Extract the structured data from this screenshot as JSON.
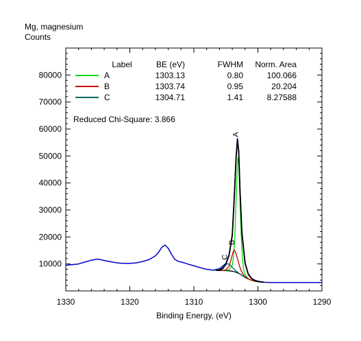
{
  "chart_data": {
    "type": "line",
    "title": "Mg, magnesium",
    "ylabel": "Counts",
    "xlabel": "Binding Energy, (eV)",
    "xlim": [
      1330,
      1290
    ],
    "ylim": [
      0,
      90000
    ],
    "x_ticks": [
      1330,
      1320,
      1310,
      1300,
      1290
    ],
    "y_ticks": [
      10000,
      20000,
      30000,
      40000,
      50000,
      60000,
      70000,
      80000
    ],
    "grid": false,
    "legend": {
      "placement": "top-left",
      "headers": {
        "label": "Label",
        "be": "BE (eV)",
        "fwhm": "FWHM",
        "area": "Norm. Area"
      },
      "entries": [
        {
          "label": "A",
          "be": "1303.13",
          "fwhm": "0.80",
          "area": "100.066",
          "color": "#00dd00"
        },
        {
          "label": "B",
          "be": "1303.74",
          "fwhm": "0.95",
          "area": "20.204",
          "color": "#cc0000"
        },
        {
          "label": "C",
          "be": "1304.71",
          "fwhm": "1.41",
          "area": "8.27588",
          "color": "#006666"
        }
      ]
    },
    "annotation": "Reduced Chi-Square: 3.866",
    "series": [
      {
        "role": "data",
        "color": "#0000cc",
        "x": [
          1330,
          1328,
          1327,
          1326,
          1325,
          1324,
          1323,
          1322,
          1321,
          1320,
          1319,
          1318,
          1317,
          1316,
          1315.5,
          1315,
          1314.5,
          1314,
          1313.5,
          1313,
          1312.5,
          1312,
          1311.5,
          1311,
          1310,
          1309,
          1308,
          1307,
          1306,
          1305,
          1304.5,
          1304,
          1303.7,
          1303.4,
          1303.2,
          1303,
          1302.8,
          1302.5,
          1302,
          1301.5,
          1301,
          1300.5,
          1300,
          1299.5,
          1299,
          1298,
          1296,
          1294,
          1292,
          1290
        ],
        "y": [
          9500,
          10000,
          10700,
          11400,
          11800,
          11300,
          10800,
          10400,
          10200,
          10200,
          10400,
          10900,
          11600,
          13000,
          14400,
          16200,
          17000,
          15800,
          13600,
          11800,
          11000,
          10700,
          10400,
          10000,
          9300,
          8600,
          8000,
          7700,
          8200,
          10200,
          13500,
          21000,
          35000,
          50000,
          56500,
          52000,
          38000,
          22000,
          10500,
          6300,
          4700,
          4000,
          3600,
          3400,
          3200,
          3100,
          3100,
          3100,
          3100,
          3100
        ]
      },
      {
        "role": "envelope",
        "color": "#000000",
        "x": [
          1306.5,
          1306,
          1305.5,
          1305,
          1304.5,
          1304,
          1303.7,
          1303.4,
          1303.2,
          1303,
          1302.8,
          1302.5,
          1302,
          1301.5,
          1301,
          1300.5,
          1300,
          1299.5,
          1299
        ],
        "y": [
          7600,
          7700,
          8200,
          10000,
          13200,
          20500,
          34000,
          49500,
          56000,
          51500,
          37500,
          21500,
          10200,
          6100,
          4600,
          3900,
          3500,
          3300,
          3200
        ]
      },
      {
        "role": "background",
        "color": "#000000",
        "x": [
          1306.5,
          1305.5,
          1304.5,
          1304,
          1303.5,
          1303,
          1302.5,
          1302,
          1301.5,
          1301,
          1300.5,
          1300,
          1299.5,
          1299
        ],
        "y": [
          7600,
          7550,
          7450,
          7300,
          7000,
          6500,
          5800,
          5000,
          4400,
          3900,
          3600,
          3400,
          3300,
          3200
        ]
      },
      {
        "name": "A",
        "color": "#00dd00",
        "x": [
          1305.5,
          1304.5,
          1304,
          1303.8,
          1303.6,
          1303.4,
          1303.2,
          1303.1,
          1303,
          1302.8,
          1302.6,
          1302.4,
          1302.2,
          1302,
          1301.5,
          1301,
          1300.5
        ],
        "y": [
          7500,
          7800,
          9500,
          13000,
          20000,
          34000,
          47000,
          49500,
          47000,
          34000,
          20000,
          11500,
          7600,
          6000,
          4500,
          3900,
          3600
        ]
      },
      {
        "name": "B",
        "color": "#cc0000",
        "x": [
          1306,
          1305.5,
          1305,
          1304.5,
          1304.2,
          1303.9,
          1303.7,
          1303.5,
          1303.2,
          1302.9,
          1302.6,
          1302.3,
          1302,
          1301.5,
          1301,
          1300.5
        ],
        "y": [
          7500,
          7550,
          7800,
          9200,
          11500,
          14200,
          15200,
          14400,
          12000,
          9400,
          7400,
          6100,
          5300,
          4500,
          4000,
          3600
        ]
      },
      {
        "name": "C",
        "color": "#006666",
        "x": [
          1307,
          1306.5,
          1306,
          1305.5,
          1305.2,
          1304.9,
          1304.7,
          1304.5,
          1304.2,
          1303.9,
          1303.5,
          1303,
          1302.5,
          1302
        ],
        "y": [
          7600,
          7650,
          7900,
          8600,
          9300,
          9900,
          10100,
          9900,
          9300,
          8500,
          7600,
          6600,
          5800,
          5000
        ]
      }
    ],
    "peak_labels": [
      {
        "text": "A",
        "x": 1303.1,
        "y": 57000
      },
      {
        "text": "B",
        "x": 1303.7,
        "y": 17000
      },
      {
        "text": "C",
        "x": 1304.8,
        "y": 11500
      }
    ]
  }
}
